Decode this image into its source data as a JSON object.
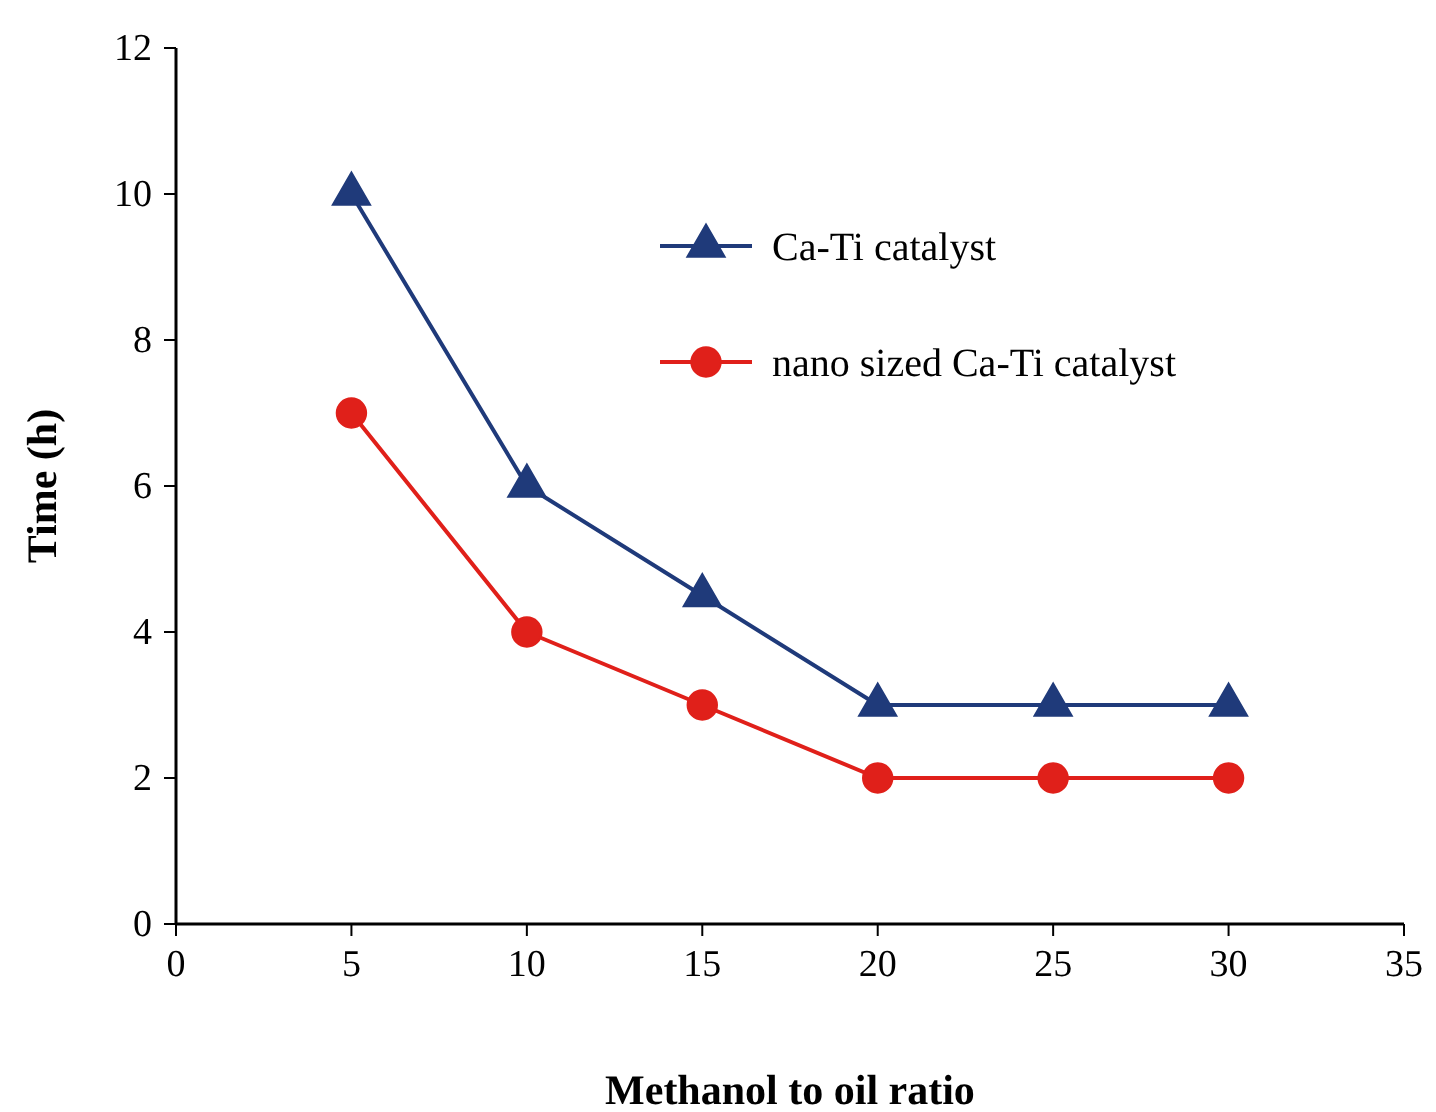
{
  "chart_data": {
    "type": "line",
    "xlabel": "Methanol to oil ratio",
    "ylabel": "Time (h)",
    "xlim": [
      0,
      35
    ],
    "xticks": [
      0,
      5,
      10,
      15,
      20,
      25,
      30,
      35
    ],
    "ylim": [
      0,
      12
    ],
    "yticks": [
      0,
      2,
      4,
      6,
      8,
      10,
      12
    ],
    "grid": false,
    "legend": "top right",
    "line_style": "solid",
    "series": [
      {
        "name": "Ca-Ti catalyst",
        "color": "#1f3a7a",
        "marker": "triangle",
        "x": [
          5,
          10,
          15,
          20,
          25,
          30
        ],
        "values": [
          10,
          6,
          4.5,
          3,
          3,
          3
        ]
      },
      {
        "name": "nano sized Ca-Ti catalyst",
        "color": "#e0201a",
        "marker": "circle",
        "x": [
          5,
          10,
          15,
          20,
          25,
          30
        ],
        "values": [
          7,
          4,
          3,
          2,
          2,
          2
        ]
      }
    ]
  }
}
